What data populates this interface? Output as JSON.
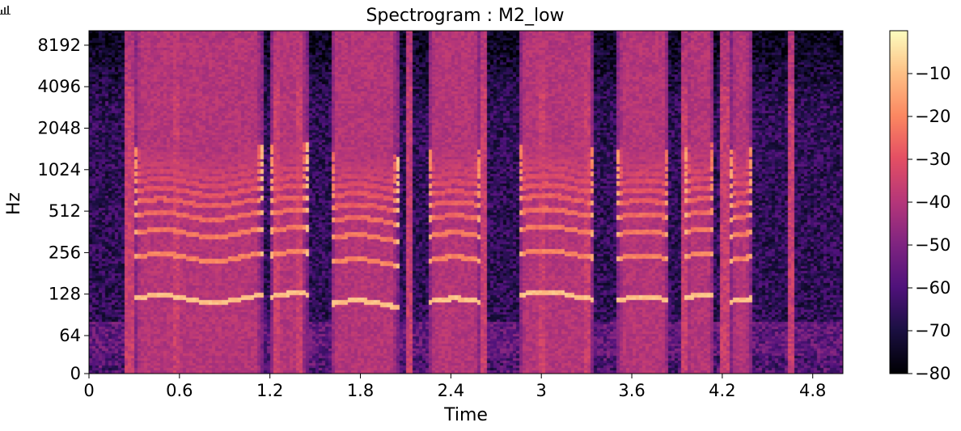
{
  "chart_data": [
    {
      "type": "heatmap",
      "title": "Spectrogram : M2_low",
      "xlabel": "Time",
      "ylabel": "Hz",
      "x_ticks": [
        "0",
        "0.6",
        "1.2",
        "1.8",
        "2.4",
        "3",
        "3.6",
        "4.2",
        "4.8"
      ],
      "x_tick_values": [
        0,
        0.6,
        1.2,
        1.8,
        2.4,
        3.0,
        3.6,
        4.2,
        4.8
      ],
      "xlim": [
        0,
        5.0
      ],
      "y_scale": "symlog (log2 above 64 Hz)",
      "y_ticks": [
        "0",
        "64",
        "128",
        "256",
        "512",
        "1024",
        "2048",
        "4096",
        "8192"
      ],
      "y_tick_values": [
        0,
        64,
        128,
        256,
        512,
        1024,
        2048,
        4096,
        8192
      ],
      "ylim": [
        0,
        11025
      ],
      "colormap": "magma",
      "colorbar": {
        "ticks": [
          "−10",
          "−20",
          "−30",
          "−40",
          "−50",
          "−60",
          "−70",
          "−80"
        ],
        "tick_values": [
          -10,
          -20,
          -30,
          -40,
          -50,
          -60,
          -70,
          -80
        ],
        "range": [
          -80,
          0
        ]
      },
      "voiced_segments": [
        {
          "start": 0.3,
          "end": 1.15,
          "f0": 118
        },
        {
          "start": 1.2,
          "end": 1.45,
          "f0": 122
        },
        {
          "start": 1.6,
          "end": 2.05,
          "f0": 108
        },
        {
          "start": 2.25,
          "end": 2.6,
          "f0": 112
        },
        {
          "start": 2.85,
          "end": 3.35,
          "f0": 125
        },
        {
          "start": 3.5,
          "end": 3.85,
          "f0": 115
        },
        {
          "start": 3.95,
          "end": 4.15,
          "f0": 120
        },
        {
          "start": 4.25,
          "end": 4.4,
          "f0": 112
        }
      ],
      "transients": [
        0.27,
        0.58,
        1.25,
        1.4,
        2.12,
        2.62,
        3.0,
        3.3,
        3.95,
        4.22,
        4.65
      ]
    }
  ],
  "toolbar": {
    "icon": "bar-chart-icon"
  }
}
